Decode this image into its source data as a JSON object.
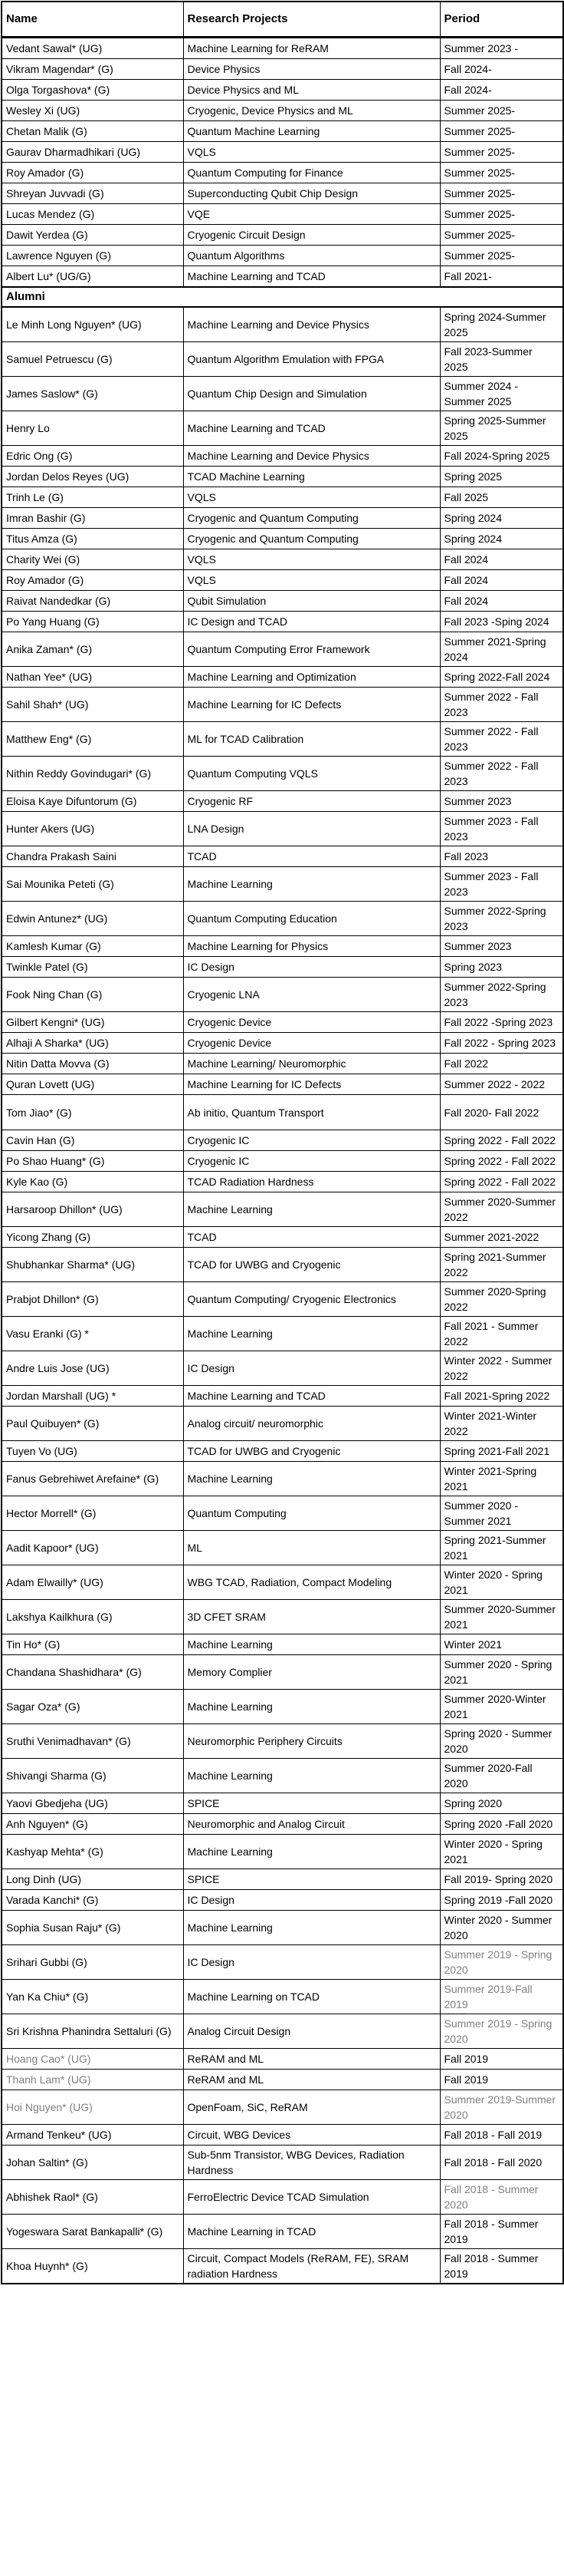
{
  "colors": {
    "text": "#000000",
    "muted_text": "#7f7f7f",
    "border": "#000000",
    "background": "#ffffff"
  },
  "table": {
    "columns": [
      {
        "label": "Name"
      },
      {
        "label": "Research Projects"
      },
      {
        "label": "Period"
      }
    ],
    "alumni_label": "Alumni",
    "current_students": [
      {
        "name": "Vedant Sawal* (UG)",
        "project": "Machine Learning for ReRAM",
        "period": "Summer 2023 -"
      },
      {
        "name": "Vikram Magendar* (G)",
        "project": "Device Physics",
        "period": "Fall 2024-"
      },
      {
        "name": "Olga Torgashova* (G)",
        "project": "Device Physics and ML",
        "period": "Fall 2024-"
      },
      {
        "name": "Wesley Xi (UG)",
        "project": "Cryogenic, Device Physics and ML",
        "period": "Summer 2025-"
      },
      {
        "name": "Chetan Malik (G)",
        "project": "Quantum Machine Learning",
        "period": "Summer 2025-"
      },
      {
        "name": "Gaurav Dharmadhikari (UG)",
        "project": "VQLS",
        "period": "Summer 2025-"
      },
      {
        "name": "Roy Amador (G)",
        "project": "Quantum Computing for Finance",
        "period": "Summer 2025-"
      },
      {
        "name": "Shreyan Juvvadi (G)",
        "project": "Superconducting Qubit Chip Design",
        "period": "Summer 2025-"
      },
      {
        "name": "Lucas Mendez (G)",
        "project": "VQE",
        "period": "Summer 2025-"
      },
      {
        "name": "Dawit Yerdea (G)",
        "project": "Cryogenic Circuit Design",
        "period": "Summer 2025-"
      },
      {
        "name": "Lawrence Nguyen (G)",
        "project": "Quantum Algorithms",
        "period": "Summer 2025-"
      },
      {
        "name": "Albert Lu* (UG/G)",
        "project": "Machine Learning and TCAD",
        "period": "Fall 2021-"
      }
    ],
    "alumni": [
      {
        "name": "Le Minh Long Nguyen* (UG)",
        "project": "Machine Learning and Device Physics",
        "period": "Spring 2024-Summer 2025"
      },
      {
        "name": "Samuel Petruescu (G)",
        "project": "Quantum Algorithm Emulation with FPGA",
        "period": "Fall 2023-Summer 2025"
      },
      {
        "name": "James Saslow* (G)",
        "project": "Quantum Chip Design and Simulation",
        "period": "Summer 2024 - Summer 2025"
      },
      {
        "name": "Henry Lo",
        "project": "Machine Learning and TCAD",
        "period": "Spring 2025-Summer 2025"
      },
      {
        "name": "Edric Ong (G)",
        "project": "Machine Learning and Device Physics",
        "period": "Fall 2024-Spring 2025"
      },
      {
        "name": "Jordan Delos Reyes (UG)",
        "project": "TCAD Machine Learning",
        "period": "Spring 2025"
      },
      {
        "name": "Trinh Le (G)",
        "project": "VQLS",
        "period": "Fall 2025"
      },
      {
        "name": "Imran Bashir (G)",
        "project": "Cryogenic and Quantum Computing",
        "period": "Spring 2024"
      },
      {
        "name": "Titus Amza (G)",
        "project": "Cryogenic and Quantum Computing",
        "period": "Spring 2024"
      },
      {
        "name": "Charity Wei (G)",
        "project": "VQLS",
        "period": "Fall 2024"
      },
      {
        "name": "Roy Amador  (G)",
        "project": "VQLS",
        "period": "Fall 2024"
      },
      {
        "name": "Raivat Nandedkar (G)",
        "project": "Qubit Simulation",
        "period": "Fall 2024"
      },
      {
        "name": "Po Yang Huang (G)",
        "project": "IC Design and TCAD",
        "period": "Fall 2023 -Sping 2024"
      },
      {
        "name": "Anika Zaman* (G)",
        "project": "Quantum Computing Error Framework",
        "period": "Summer 2021-Spring 2024"
      },
      {
        "name": "Nathan Yee* (UG)",
        "project": "Machine Learning and Optimization",
        "period": "Spring 2022-Fall 2024"
      },
      {
        "name": "Sahil Shah* (UG)",
        "project": "Machine Learning for IC Defects",
        "period": "Summer 2022 - Fall 2023"
      },
      {
        "name": "Matthew Eng* (G)",
        "project": "ML for TCAD Calibration",
        "period": "Summer 2022 - Fall 2023"
      },
      {
        "name": "Nithin Reddy Govindugari* (G)",
        "project": "Quantum Computing VQLS",
        "period": "Summer 2022 - Fall 2023"
      },
      {
        "name": "Eloisa Kaye Difuntorum (G)",
        "project": "Cryogenic RF",
        "period": "Summer 2023"
      },
      {
        "name": "Hunter Akers (UG)",
        "project": "LNA Design",
        "period": "Summer 2023 - Fall 2023"
      },
      {
        "name": "Chandra Prakash Saini",
        "project": "TCAD",
        "period": "Fall 2023"
      },
      {
        "name": "Sai Mounika Peteti (G)",
        "project": "Machine Learning",
        "period": "Summer 2023 - Fall 2023"
      },
      {
        "name": "Edwin Antunez* (UG)",
        "project": "Quantum Computing Education",
        "period": "Summer 2022-Spring 2023"
      },
      {
        "name": "Kamlesh Kumar (G)",
        "project": "Machine Learning for Physics",
        "period": "Summer 2023"
      },
      {
        "name": "Twinkle Patel (G)",
        "project": "IC Design",
        "period": "Spring 2023"
      },
      {
        "name": "Fook Ning Chan (G)",
        "project": "Cryogenic LNA",
        "period": "Summer 2022-Spring 2023"
      },
      {
        "name": "Gilbert Kengni* (UG)",
        "project": "Cryogenic Device",
        "period": "Fall 2022 -Spring 2023"
      },
      {
        "name": "Alhaji A Sharka* (UG)",
        "project": "Cryogenic Device",
        "period": "Fall 2022 - Spring 2023"
      },
      {
        "name": "Nitin Datta Movva (G)",
        "project": "Machine Learning/ Neuromorphic",
        "period": "Fall 2022"
      },
      {
        "name": "Quran Lovett (UG)",
        "project": "Machine Learning for IC Defects",
        "period": "Summer 2022 - 2022"
      },
      {
        "name": "Tom Jiao* (G)",
        "project": "Ab initio, Quantum Transport",
        "period": "Fall 2020- Fall 2022",
        "tall": true
      },
      {
        "name": "Cavin Han (G)",
        "project": "Cryogenic IC",
        "period": "Spring 2022 - Fall 2022"
      },
      {
        "name": "Po Shao Huang* (G)",
        "project": "Cryogenic IC",
        "period": "Spring 2022 - Fall 2022"
      },
      {
        "name": "Kyle Kao (G)",
        "project": "TCAD Radiation Hardness",
        "period": "Spring 2022 - Fall 2022"
      },
      {
        "name": "Harsaroop Dhillon* (UG)",
        "project": "Machine Learning",
        "period": "Summer 2020-Summer 2022"
      },
      {
        "name": "Yicong Zhang (G)",
        "project": "TCAD",
        "period": "Summer 2021-2022"
      },
      {
        "name": "Shubhankar Sharma* (UG)",
        "project": "TCAD for UWBG and Cryogenic",
        "period": "Spring 2021-Summer 2022"
      },
      {
        "name": "Prabjot Dhillon* (G)",
        "project": "Quantum Computing/ Cryogenic Electronics",
        "period": "Summer 2020-Spring 2022"
      },
      {
        "name": "Vasu Eranki (G) *",
        "project": "Machine Learning",
        "period": "Fall 2021 - Summer 2022"
      },
      {
        "name": "Andre Luis Jose (UG)",
        "project": "IC Design",
        "period": "Winter 2022 - Summer 2022"
      },
      {
        "name": "Jordan Marshall (UG) *",
        "project": "Machine Learning and TCAD",
        "period": "Fall 2021-Spring 2022"
      },
      {
        "name": "Paul Quibuyen* (G)",
        "project": "Analog circuit/ neuromorphic",
        "period": "Winter 2021-Winter 2022"
      },
      {
        "name": "Tuyen Vo (UG)",
        "project": "TCAD for UWBG and Cryogenic",
        "period": "Spring 2021-Fall 2021"
      },
      {
        "name": "Fanus Gebrehiwet Arefaine* (G)",
        "project": "Machine Learning",
        "period": "Winter 2021-Spring 2021"
      },
      {
        "name": "Hector Morrell* (G)",
        "project": "Quantum Computing",
        "period": "Summer 2020 - Summer 2021"
      },
      {
        "name": "Aadit Kapoor* (UG)",
        "project": "ML",
        "period": "Spring 2021-Summer 2021"
      },
      {
        "name": "Adam Elwailly* (UG)",
        "project": "WBG TCAD, Radiation, Compact Modeling",
        "period": "Winter 2020 - Spring 2021"
      },
      {
        "name": "Lakshya Kailkhura (G)",
        "project": "3D CFET SRAM",
        "period": "Summer 2020-Summer 2021"
      },
      {
        "name": "Tin Ho* (G)",
        "project": "Machine Learning",
        "period": "Winter 2021"
      },
      {
        "name": "Chandana Shashidhara* (G)",
        "project": "Memory Complier",
        "period": "Summer 2020 - Spring 2021"
      },
      {
        "name": "Sagar Oza* (G)",
        "project": "Machine Learning",
        "period": "Summer 2020-Winter 2021"
      },
      {
        "name": "Sruthi Venimadhavan* (G)",
        "project": "Neuromorphic Periphery Circuits",
        "period": "Spring 2020 - Summer 2020"
      },
      {
        "name": "Shivangi Sharma (G)",
        "project": "Machine Learning",
        "period": "Summer 2020-Fall 2020"
      },
      {
        "name": "Yaovi Gbedjeha (UG)",
        "project": "SPICE",
        "period": "Spring 2020"
      },
      {
        "name": "Anh Nguyen* (G)",
        "project": "Neuromorphic and Analog Circuit",
        "period": "Spring 2020 -Fall 2020"
      },
      {
        "name": "Kashyap Mehta* (G)",
        "project": "Machine Learning",
        "period": "Winter 2020 - Spring 2021"
      },
      {
        "name": "Long Dinh (UG)",
        "project": "SPICE",
        "period": "Fall 2019- Spring 2020"
      },
      {
        "name": "Varada Kanchi* (G)",
        "project": "IC Design",
        "period": "Spring 2019 -Fall 2020"
      },
      {
        "name": "Sophia Susan Raju* (G)",
        "project": "Machine Learning",
        "period": "Winter 2020 - Summer 2020"
      },
      {
        "name": "Srihari Gubbi (G)",
        "project": "IC Design",
        "period": "Summer 2019 - Spring 2020",
        "period_muted": true
      },
      {
        "name": "Yan Ka Chiu* (G)",
        "project": "Machine Learning on TCAD",
        "period": "Summer 2019-Fall 2019",
        "period_muted": true
      },
      {
        "name": "Sri Krishna Phanindra Settaluri (G)",
        "project": "Analog Circuit Design",
        "period": "Summer 2019 - Spring 2020",
        "period_muted": true
      },
      {
        "name": "Hoang Cao* (UG)",
        "project": "ReRAM and ML",
        "period": "Fall 2019",
        "name_muted": true
      },
      {
        "name": "Thanh Lam* (UG)",
        "project": "ReRAM and ML",
        "period": "Fall 2019",
        "name_muted": true
      },
      {
        "name": "Hoi Nguyen* (UG)",
        "project": "OpenFoam, SiC, ReRAM",
        "period": "Summer 2019-Summer 2020",
        "name_muted": true,
        "period_muted": true
      },
      {
        "name": "Armand Tenkeu* (UG)",
        "project": "Circuit, WBG Devices",
        "period": "Fall 2018 - Fall 2019"
      },
      {
        "name": "Johan Saltin* (G)",
        "project": "Sub-5nm Transistor, WBG Devices, Radiation Hardness",
        "period": "Fall 2018 - Fall 2020"
      },
      {
        "name": "Abhishek Raol* (G)",
        "project": "FerroElectric Device TCAD Simulation",
        "period": "Fall 2018 - Summer 2020",
        "period_muted": true
      },
      {
        "name": "Yogeswara Sarat Bankapalli* (G)",
        "project": "Machine Learning in TCAD",
        "period": "Fall 2018 - Summer 2019"
      },
      {
        "name": "Khoa Huynh* (G)",
        "project": "Circuit, Compact Models (ReRAM, FE), SRAM radiation Hardness",
        "period": "Fall 2018 - Summer 2019"
      }
    ]
  }
}
